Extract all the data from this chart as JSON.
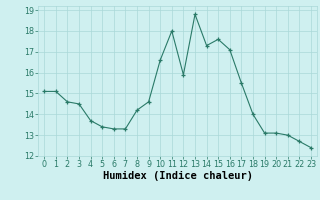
{
  "x": [
    0,
    1,
    2,
    3,
    4,
    5,
    6,
    7,
    8,
    9,
    10,
    11,
    12,
    13,
    14,
    15,
    16,
    17,
    18,
    19,
    20,
    21,
    22,
    23
  ],
  "y": [
    15.1,
    15.1,
    14.6,
    14.5,
    13.7,
    13.4,
    13.3,
    13.3,
    14.2,
    14.6,
    16.6,
    18.0,
    15.9,
    18.8,
    17.3,
    17.6,
    17.1,
    15.5,
    14.0,
    13.1,
    13.1,
    13.0,
    12.7,
    12.4
  ],
  "line_color": "#2a7a68",
  "marker_color": "#2a7a68",
  "bg_color": "#cff0f0",
  "grid_color": "#aad8d8",
  "xlabel": "Humidex (Indice chaleur)",
  "xlim": [
    -0.5,
    23.5
  ],
  "ylim": [
    12,
    19.2
  ],
  "ytick_vals": [
    12,
    13,
    14,
    15,
    16,
    17,
    18,
    19
  ],
  "tick_fontsize": 5.8,
  "label_fontsize": 7.5
}
